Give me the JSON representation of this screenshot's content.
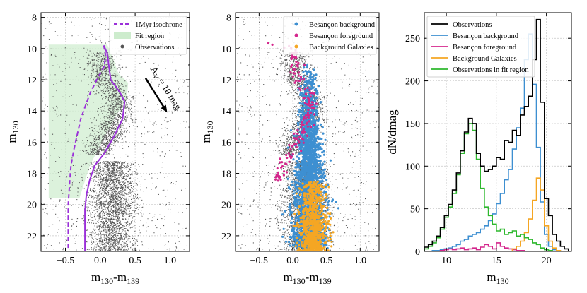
{
  "chart_data": [
    {
      "type": "scatter",
      "xlabel": "m",
      "xlabel_sub": "130",
      "xlabel_sep": "-m",
      "xlabel_sub2": "139",
      "ylabel": "m",
      "ylabel_sub": "130",
      "xlim": [
        -0.85,
        1.28
      ],
      "ylim": [
        23.0,
        7.7
      ],
      "xticks": [
        -0.5,
        0.0,
        0.5,
        1.0
      ],
      "xtick_labels": [
        "−0.5",
        "0.0",
        "0.5",
        "1.0"
      ],
      "yticks": [
        8,
        10,
        12,
        14,
        16,
        18,
        20,
        22
      ],
      "ytick_labels": [
        "8",
        "10",
        "12",
        "14",
        "16",
        "18",
        "20",
        "22"
      ],
      "grid": true,
      "legend_position": "top-right",
      "legend": [
        "1Myr isochrone",
        "Fit region",
        "Observations"
      ],
      "colors": {
        "observations": "#555555",
        "isochrone": "#9b30d9",
        "fit_region": "#cdeccd"
      },
      "fit_region_polygon": [
        [
          -0.74,
          9.75
        ],
        [
          0.1,
          9.75
        ],
        [
          0.18,
          10.6
        ],
        [
          0.26,
          11.6
        ],
        [
          0.4,
          12.2
        ],
        [
          0.38,
          13.2
        ],
        [
          0.2,
          14.5
        ],
        [
          0.0,
          16.2
        ],
        [
          -0.15,
          17.5
        ],
        [
          -0.3,
          19.6
        ],
        [
          -0.74,
          19.6
        ]
      ],
      "isochrone_dashed": [
        [
          0.05,
          9.8
        ],
        [
          0.08,
          10.5
        ],
        [
          0.05,
          11.2
        ],
        [
          -0.05,
          12.0
        ],
        [
          -0.14,
          12.8
        ],
        [
          -0.2,
          13.5
        ],
        [
          -0.28,
          14.5
        ],
        [
          -0.33,
          15.5
        ],
        [
          -0.38,
          16.5
        ],
        [
          -0.42,
          17.5
        ],
        [
          -0.44,
          18.6
        ],
        [
          -0.46,
          20.0
        ],
        [
          -0.46,
          21.5
        ],
        [
          -0.46,
          23.0
        ]
      ],
      "isochrone_solid": [
        [
          0.05,
          9.8
        ],
        [
          0.1,
          10.3
        ],
        [
          0.12,
          11.0
        ],
        [
          0.15,
          12.0
        ],
        [
          0.28,
          12.8
        ],
        [
          0.35,
          13.4
        ],
        [
          0.32,
          14.5
        ],
        [
          0.2,
          15.6
        ],
        [
          0.06,
          16.7
        ],
        [
          -0.08,
          17.5
        ],
        [
          -0.15,
          18.4
        ],
        [
          -0.2,
          19.4
        ],
        [
          -0.22,
          20.4
        ],
        [
          -0.22,
          21.5
        ],
        [
          -0.22,
          23.0
        ]
      ],
      "annotation_text": "A",
      "annotation_sub": "V",
      "annotation_tail": " = 10 mag",
      "arrow_from": [
        0.65,
        11.9
      ],
      "arrow_to": [
        0.96,
        14.1
      ]
    },
    {
      "type": "scatter",
      "xlabel": "m",
      "xlabel_sub": "130",
      "xlabel_sep": "-m",
      "xlabel_sub2": "139",
      "ylabel": "m",
      "ylabel_sub": "130",
      "xlim": [
        -0.85,
        1.28
      ],
      "ylim": [
        23.0,
        7.7
      ],
      "xticks": [
        -0.5,
        0.0,
        0.5,
        1.0
      ],
      "xtick_labels": [
        "−0.5",
        "0.0",
        "0.5",
        "1.0"
      ],
      "yticks": [
        8,
        10,
        12,
        14,
        16,
        18,
        20,
        22
      ],
      "ytick_labels": [
        "8",
        "10",
        "12",
        "14",
        "16",
        "18",
        "20",
        "22"
      ],
      "grid": true,
      "legend_position": "top-right",
      "legend": [
        "Besançon background",
        "Besançon foreground",
        "Background Galaxies"
      ],
      "colors": {
        "observations": "#555555",
        "background": "#3d8fd1",
        "foreground": "#d4268c",
        "galaxies": "#f5a623"
      }
    },
    {
      "type": "step",
      "xlabel": "m",
      "xlabel_sub": "130",
      "ylabel": "dN/dmag",
      "xlim": [
        7.8,
        22.5
      ],
      "ylim": [
        0,
        280
      ],
      "xticks": [
        10,
        15,
        20
      ],
      "xtick_labels": [
        "10",
        "15",
        "20"
      ],
      "yticks": [
        0,
        50,
        100,
        150,
        200,
        250
      ],
      "ytick_labels": [
        "0",
        "50",
        "100",
        "150",
        "200",
        "250"
      ],
      "grid": true,
      "legend_position": "top-left",
      "bin_start": 7.8,
      "bin_width": 0.4,
      "series": [
        {
          "name": "Observations",
          "color": "#000000",
          "values": [
            5,
            8,
            12,
            18,
            28,
            42,
            55,
            72,
            92,
            118,
            140,
            156,
            150,
            115,
            100,
            94,
            96,
            100,
            110,
            108,
            130,
            128,
            142,
            136,
            160,
            170,
            182,
            225,
            272,
            175,
            62,
            42,
            20,
            12,
            6,
            3
          ]
        },
        {
          "name": "Besançon background",
          "color": "#3d8fd1",
          "values": [
            0,
            0,
            1,
            1,
            2,
            3,
            4,
            6,
            8,
            12,
            14,
            18,
            20,
            22,
            26,
            30,
            36,
            44,
            56,
            68,
            84,
            96,
            120,
            145,
            168,
            225,
            255,
            196,
            122,
            58,
            20,
            6,
            2,
            1,
            0,
            0
          ]
        },
        {
          "name": "Besançon foreground",
          "color": "#d4268c",
          "values": [
            0,
            0,
            0,
            0,
            1,
            2,
            3,
            2,
            3,
            4,
            2,
            3,
            4,
            2,
            5,
            8,
            6,
            3,
            10,
            6,
            4,
            3,
            2,
            1,
            1,
            0,
            0,
            0,
            0,
            0,
            0,
            0,
            0,
            0,
            0,
            0
          ]
        },
        {
          "name": "Background Galaxies",
          "color": "#f5a623",
          "values": [
            0,
            0,
            0,
            0,
            0,
            0,
            0,
            0,
            0,
            0,
            0,
            0,
            0,
            0,
            0,
            0,
            0,
            0,
            0,
            0,
            0,
            0,
            3,
            6,
            12,
            22,
            38,
            60,
            86,
            72,
            30,
            12,
            4,
            1,
            0,
            0
          ]
        },
        {
          "name": "Observations in fit region",
          "color": "#2eb82e",
          "values": [
            3,
            6,
            10,
            16,
            26,
            40,
            52,
            68,
            90,
            115,
            138,
            150,
            142,
            108,
            74,
            52,
            42,
            32,
            24,
            26,
            20,
            22,
            24,
            18,
            20,
            16,
            14,
            10,
            8,
            4,
            2,
            1,
            0,
            0,
            0,
            0
          ]
        }
      ]
    }
  ]
}
